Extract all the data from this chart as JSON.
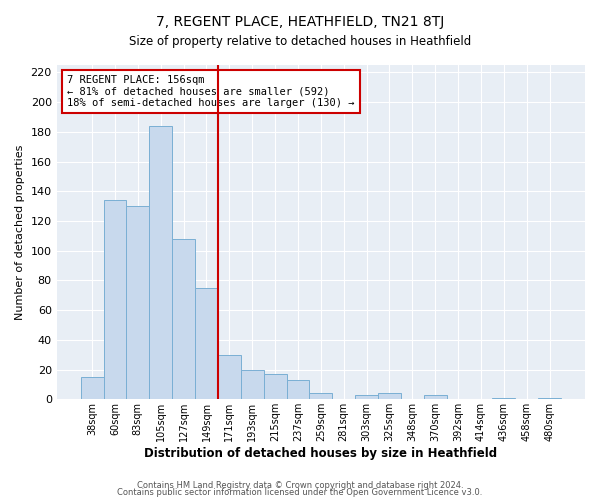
{
  "title": "7, REGENT PLACE, HEATHFIELD, TN21 8TJ",
  "subtitle": "Size of property relative to detached houses in Heathfield",
  "xlabel": "Distribution of detached houses by size in Heathfield",
  "ylabel": "Number of detached properties",
  "bar_labels": [
    "38sqm",
    "60sqm",
    "83sqm",
    "105sqm",
    "127sqm",
    "149sqm",
    "171sqm",
    "193sqm",
    "215sqm",
    "237sqm",
    "259sqm",
    "281sqm",
    "303sqm",
    "325sqm",
    "348sqm",
    "370sqm",
    "392sqm",
    "414sqm",
    "436sqm",
    "458sqm",
    "480sqm"
  ],
  "bar_values": [
    15,
    134,
    130,
    184,
    108,
    75,
    30,
    20,
    17,
    13,
    4,
    0,
    3,
    4,
    0,
    3,
    0,
    0,
    1,
    0,
    1
  ],
  "bar_color": "#c8d9ed",
  "bar_edge_color": "#7aafd4",
  "vline_x": 5.5,
  "vline_color": "#cc0000",
  "annotation_title": "7 REGENT PLACE: 156sqm",
  "annotation_line1": "← 81% of detached houses are smaller (592)",
  "annotation_line2": "18% of semi-detached houses are larger (130) →",
  "annotation_box_color": "#cc0000",
  "ylim": [
    0,
    225
  ],
  "yticks": [
    0,
    20,
    40,
    60,
    80,
    100,
    120,
    140,
    160,
    180,
    200,
    220
  ],
  "bg_color": "#e8eef5",
  "fig_bg_color": "#ffffff",
  "footer1": "Contains HM Land Registry data © Crown copyright and database right 2024.",
  "footer2": "Contains public sector information licensed under the Open Government Licence v3.0.",
  "figsize": [
    6.0,
    5.0
  ],
  "dpi": 100
}
